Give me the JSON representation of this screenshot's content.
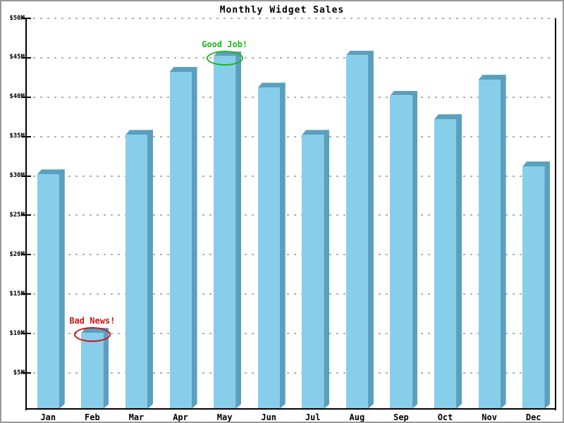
{
  "chart_data": {
    "type": "bar",
    "title": "Monthly Widget Sales",
    "xlabel": "",
    "ylabel": "",
    "categories": [
      "Jan",
      "Feb",
      "Mar",
      "Apr",
      "May",
      "Jun",
      "Jul",
      "Aug",
      "Sep",
      "Oct",
      "Nov",
      "Dec"
    ],
    "values": [
      30.2,
      10.1,
      35.2,
      43.2,
      45.2,
      41.2,
      35.2,
      45.3,
      40.2,
      37.2,
      42.2,
      31.2
    ],
    "ylim": [
      0,
      50
    ],
    "yticks": [
      5,
      10,
      15,
      20,
      25,
      30,
      35,
      40,
      45,
      50
    ],
    "ytick_labels": [
      "$5M",
      "$10M",
      "$15M",
      "$20M",
      "$25M",
      "$30M",
      "$35M",
      "$40M",
      "$45M",
      "$50M"
    ],
    "grid": true,
    "gridline_style": "dashed",
    "legend": "none",
    "annotations": [
      {
        "text": "Good Job!",
        "month": "May",
        "color": "#17b917",
        "shape": "ellipse"
      },
      {
        "text": "Bad News!",
        "month": "Feb",
        "color": "#cc1414",
        "shape": "ellipse"
      }
    ],
    "colors": {
      "bar_front": "#87CEEB",
      "bar_side": "#5B9FBE",
      "gridline": "#b0b0b0",
      "axis": "#000000",
      "frame_border": "#999999",
      "background": "#ffffff",
      "text": "#000000"
    }
  }
}
